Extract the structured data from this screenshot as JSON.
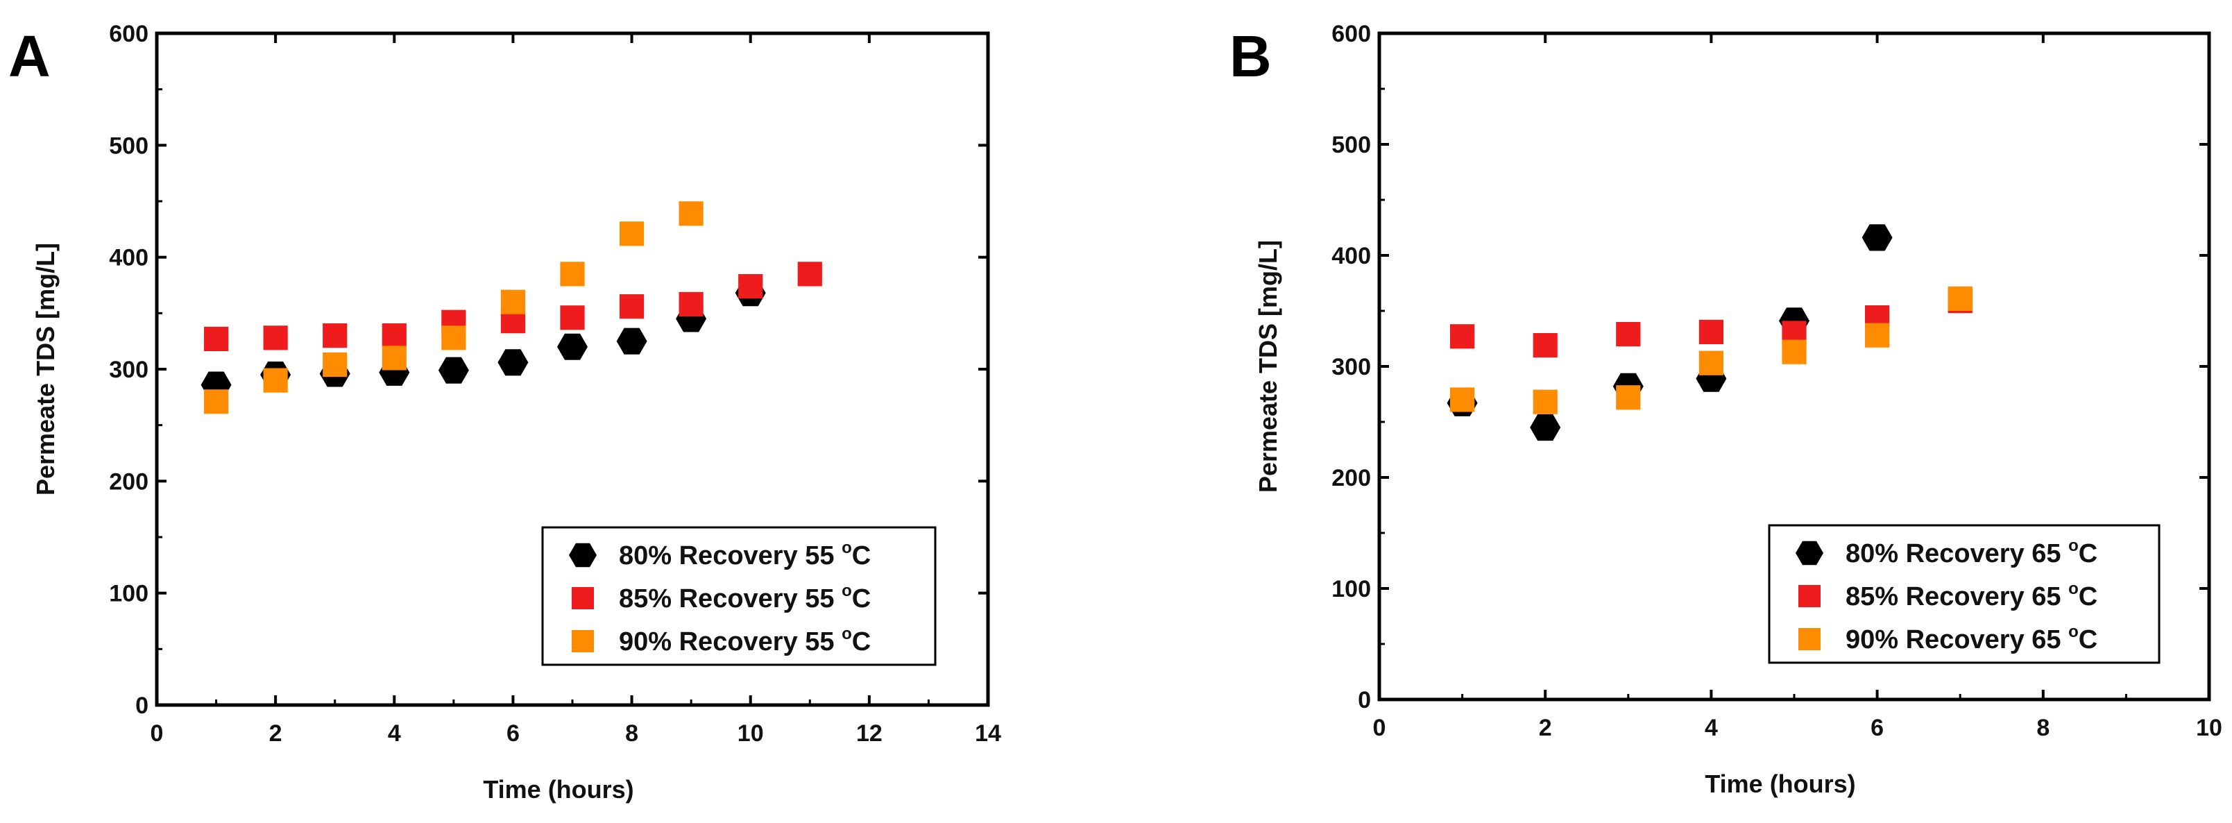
{
  "chart_data": [
    {
      "panel_label": "A",
      "type": "scatter",
      "xlabel": "Time (hours)",
      "ylabel": "Permeate TDS [mg/L]",
      "xlim": [
        0,
        14
      ],
      "ylim": [
        0,
        600
      ],
      "xticks": [
        0,
        2,
        4,
        6,
        8,
        10,
        12,
        14
      ],
      "yticks": [
        0,
        100,
        200,
        300,
        400,
        500,
        600
      ],
      "legend_position": "bottom-right",
      "grid": false,
      "series": [
        {
          "name_prefix": "80% Recovery 55 ",
          "name_sup": "o",
          "name_suffix": "C",
          "marker": "hexagon",
          "color": "#000000",
          "x": [
            1,
            2,
            3,
            4,
            5,
            6,
            7,
            8,
            9,
            10
          ],
          "y": [
            286,
            295,
            296,
            297,
            299,
            306,
            320,
            325,
            345,
            368
          ]
        },
        {
          "name_prefix": "85% Recovery 55 ",
          "name_sup": "o",
          "name_suffix": "C",
          "marker": "square",
          "color": "#ee1c1c",
          "x": [
            1,
            2,
            3,
            4,
            5,
            6,
            7,
            8,
            9,
            10,
            11
          ],
          "y": [
            327,
            328,
            330,
            330,
            342,
            343,
            346,
            356,
            358,
            374,
            385
          ]
        },
        {
          "name_prefix": "90% Recovery 55 ",
          "name_sup": "o",
          "name_suffix": "C",
          "marker": "square",
          "color": "#ff8c00",
          "x": [
            1,
            2,
            3,
            4,
            5,
            6,
            7,
            8,
            9
          ],
          "y": [
            271,
            290,
            304,
            310,
            328,
            360,
            385,
            421,
            439
          ]
        }
      ]
    },
    {
      "panel_label": "B",
      "type": "scatter",
      "xlabel": "Time (hours)",
      "ylabel": "Permeate TDS [mg/L]",
      "xlim": [
        0,
        10
      ],
      "ylim": [
        0,
        600
      ],
      "xticks": [
        0,
        2,
        4,
        6,
        8,
        10
      ],
      "yticks": [
        0,
        100,
        200,
        300,
        400,
        500,
        600
      ],
      "legend_position": "bottom-right",
      "grid": false,
      "series": [
        {
          "name_prefix": "80% Recovery 65 ",
          "name_sup": "o",
          "name_suffix": "C",
          "marker": "hexagon",
          "color": "#000000",
          "x": [
            1,
            2,
            3,
            4,
            5,
            6
          ],
          "y": [
            267,
            245,
            282,
            289,
            341,
            416
          ]
        },
        {
          "name_prefix": "85% Recovery 65 ",
          "name_sup": "o",
          "name_suffix": "C",
          "marker": "square",
          "color": "#ee1c1c",
          "x": [
            1,
            2,
            3,
            4,
            5,
            6,
            7
          ],
          "y": [
            327,
            319,
            329,
            331,
            330,
            344,
            359
          ]
        },
        {
          "name_prefix": "90% Recovery 65 ",
          "name_sup": "o",
          "name_suffix": "C",
          "marker": "square",
          "color": "#ff8c00",
          "x": [
            1,
            2,
            3,
            4,
            5,
            6,
            7
          ],
          "y": [
            270,
            268,
            272,
            303,
            313,
            328,
            361
          ]
        }
      ]
    }
  ]
}
